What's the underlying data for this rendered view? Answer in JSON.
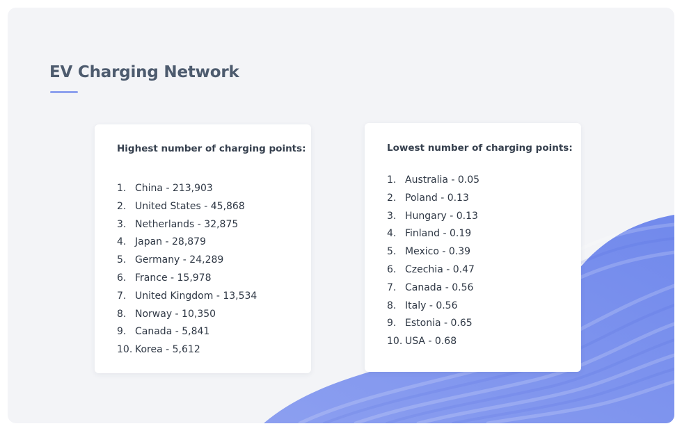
{
  "slide": {
    "title": "EV Charging Network",
    "accent_color": "#8ea1ee",
    "background_color": "#f3f4f7",
    "decoration": "blue-wavy-ribbon-shape"
  },
  "highest": {
    "heading": "Highest number of charging points:",
    "items": [
      {
        "rank": "1.",
        "text": "China - 213,903"
      },
      {
        "rank": "2.",
        "text": "United States - 45,868"
      },
      {
        "rank": "3.",
        "text": "Netherlands - 32,875"
      },
      {
        "rank": "4.",
        "text": "Japan - 28,879"
      },
      {
        "rank": "5.",
        "text": "Germany - 24,289"
      },
      {
        "rank": "6.",
        "text": "France - 15,978"
      },
      {
        "rank": "7.",
        "text": "United Kingdom - 13,534"
      },
      {
        "rank": "8.",
        "text": "Norway - 10,350"
      },
      {
        "rank": "9.",
        "text": "Canada - 5,841"
      },
      {
        "rank": "10.",
        "text": "Korea - 5,612"
      }
    ]
  },
  "lowest": {
    "heading": "Lowest number of charging points:",
    "items": [
      {
        "rank": "1.",
        "text": "Australia - 0.05"
      },
      {
        "rank": "2.",
        "text": "Poland - 0.13"
      },
      {
        "rank": "3.",
        "text": "Hungary - 0.13"
      },
      {
        "rank": "4.",
        "text": "Finland - 0.19"
      },
      {
        "rank": "5.",
        "text": "Mexico - 0.39"
      },
      {
        "rank": "6.",
        "text": "Czechia - 0.47"
      },
      {
        "rank": "7.",
        "text": "Canada - 0.56"
      },
      {
        "rank": "8.",
        "text": "Italy - 0.56"
      },
      {
        "rank": "9.",
        "text": "Estonia - 0.65"
      },
      {
        "rank": "10.",
        "text": "USA - 0.68"
      }
    ]
  }
}
